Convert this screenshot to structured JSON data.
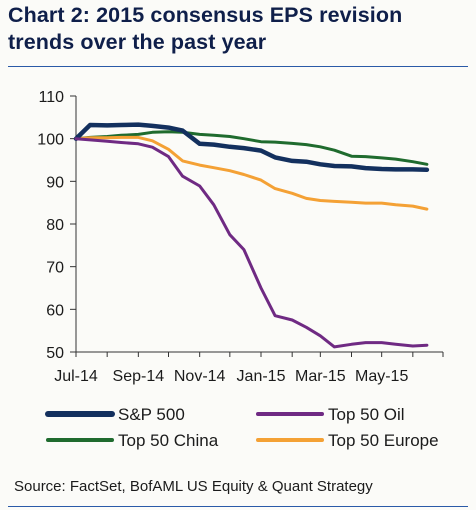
{
  "title": "Chart 2: 2015 consensus EPS revision trends over the past year",
  "source": "Source: FactSet, BofAML US Equity & Quant Strategy",
  "chart_data": {
    "type": "line",
    "title": "Chart 2: 2015 consensus EPS revision trends over the past year",
    "xlabel": "",
    "ylabel": "",
    "x_tick_labels": [
      "Jul-14",
      "Sep-14",
      "Nov-14",
      "Jan-15",
      "Mar-15",
      "May-15"
    ],
    "y_ticks": [
      50,
      60,
      70,
      80,
      90,
      100,
      110
    ],
    "ylim": [
      50,
      110
    ],
    "grid": false,
    "legend_position": "bottom",
    "x": [
      "2014-07-01",
      "2014-07-15",
      "2014-08-01",
      "2014-08-15",
      "2014-09-01",
      "2014-09-15",
      "2014-10-01",
      "2014-10-15",
      "2014-11-01",
      "2014-11-15",
      "2014-12-01",
      "2014-12-15",
      "2015-01-01",
      "2015-01-15",
      "2015-02-01",
      "2015-02-15",
      "2015-03-01",
      "2015-03-15",
      "2015-04-01",
      "2015-04-15",
      "2015-05-01",
      "2015-05-15",
      "2015-06-01",
      "2015-06-15"
    ],
    "series": [
      {
        "name": "S&P 500",
        "color": "#13305e",
        "values": [
          100,
          103.2,
          103.1,
          103.2,
          103.3,
          103.0,
          102.6,
          101.9,
          98.8,
          98.6,
          98.1,
          97.8,
          97.2,
          95.6,
          94.8,
          94.6,
          94.0,
          93.6,
          93.5,
          93.1,
          92.9,
          92.8,
          92.8,
          92.7
        ]
      },
      {
        "name": "Top 50 Oil",
        "color": "#6f2a83",
        "values": [
          100,
          99.7,
          99.4,
          99.1,
          98.8,
          98.0,
          95.8,
          91.2,
          88.9,
          84.5,
          77.5,
          74.0,
          65.0,
          58.5,
          57.5,
          55.8,
          53.8,
          51.2,
          51.8,
          52.2,
          52.2,
          51.8,
          51.4,
          51.6
        ]
      },
      {
        "name": "Top 50 China",
        "color": "#1f6b2e",
        "values": [
          100,
          100.3,
          100.5,
          100.8,
          101.0,
          101.5,
          101.6,
          101.5,
          101.0,
          100.8,
          100.5,
          100.0,
          99.3,
          99.2,
          98.9,
          98.6,
          98.1,
          97.3,
          95.9,
          95.8,
          95.5,
          95.2,
          94.6,
          94.0
        ]
      },
      {
        "name": "Top 50 Europe",
        "color": "#f4a135",
        "values": [
          100,
          100.2,
          100.2,
          100.3,
          100.3,
          99.5,
          97.5,
          94.8,
          93.8,
          93.2,
          92.5,
          91.6,
          90.3,
          88.3,
          87.2,
          86.0,
          85.5,
          85.3,
          85.1,
          84.9,
          84.9,
          84.5,
          84.2,
          83.5
        ]
      }
    ]
  }
}
